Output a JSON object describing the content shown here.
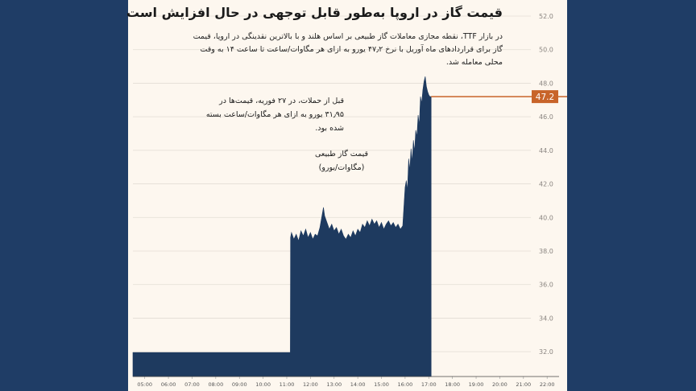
{
  "colors": {
    "background": "#1f3d66",
    "card": "#fdf7ef",
    "series_fill": "#1e3a5f",
    "accent": "#c8642a",
    "grid": "#e3ddd4"
  },
  "title": "قیمت گاز در اروپا به‌طور قابل توجهی در حال افزایش است",
  "subtitle": "در بازار TTF، نقطه مجازی معاملات گاز طبیعی بر اساس هلند و با بالاترین نقدینگی در اروپا، قیمت گاز برای قراردادهای ماه آوریل با نرخ ۴۷٫۲ یورو به ازای هر مگاوات/ساعت تا ساعت ۱۴ به وقت محلی معامله شد.",
  "annotations": {
    "note": "قبل از حملات، در ۲۷ فوریه، قیمت‌ها در ۳۱٫۹۵ یورو به ازای هر مگاوات/ساعت بسته شده بود.",
    "series_label_line1": "قیمت گاز طبیعی",
    "series_label_line2": "(مگاوات/یورو)"
  },
  "chart_data": {
    "type": "area",
    "ylim": [
      31,
      52
    ],
    "yticks": [
      "32.0",
      "34.0",
      "36.0",
      "38.0",
      "40.0",
      "42.0",
      "44.0",
      "46.0",
      "48.0",
      "50.0",
      "52.0"
    ],
    "xticks": [
      "05:00",
      "06:00",
      "07:00",
      "08:00",
      "09:00",
      "10:00",
      "11:00",
      "12:00",
      "13:00",
      "14:00",
      "15:00",
      "16:00",
      "17:00",
      "18:00",
      "19:00",
      "20:00",
      "21:00",
      "22:00"
    ],
    "xlim": [
      4.5,
      22.3
    ],
    "last_value": 47.2,
    "last_label": "47.2",
    "grid": true,
    "series": [
      {
        "x": [
          4.5,
          11.15,
          11.16,
          11.2,
          11.3,
          11.4,
          11.5,
          11.6,
          11.7,
          11.8,
          11.9,
          12.0,
          12.1,
          12.2,
          12.3,
          12.4,
          12.5,
          12.55,
          12.6,
          12.7,
          12.8,
          12.9,
          13.0,
          13.1,
          13.2,
          13.3,
          13.4,
          13.5,
          13.6,
          13.7,
          13.8,
          13.9,
          14.0,
          14.1,
          14.2,
          14.3,
          14.4,
          14.5,
          14.6,
          14.7,
          14.8,
          14.9,
          15.0,
          15.1,
          15.2,
          15.3,
          15.4,
          15.5,
          15.6,
          15.7,
          15.8,
          15.9,
          16.0,
          16.05,
          16.1,
          16.15,
          16.2,
          16.25,
          16.3,
          16.35,
          16.4,
          16.45,
          16.5,
          16.55,
          16.6,
          16.65,
          16.7,
          16.75,
          16.8,
          16.85,
          16.9,
          16.95,
          17.0,
          17.05,
          17.1
        ],
        "values": [
          31.95,
          31.95,
          38.8,
          39.1,
          38.7,
          39.0,
          38.6,
          39.2,
          38.9,
          39.3,
          38.8,
          39.1,
          38.7,
          39.0,
          38.9,
          39.4,
          40.2,
          40.6,
          40.1,
          39.7,
          39.3,
          39.6,
          39.2,
          39.4,
          39.0,
          39.3,
          38.9,
          38.7,
          39.0,
          38.8,
          39.2,
          38.9,
          39.3,
          39.1,
          39.6,
          39.4,
          39.8,
          39.5,
          39.9,
          39.6,
          39.8,
          39.4,
          39.7,
          39.3,
          39.6,
          39.8,
          39.5,
          39.7,
          39.4,
          39.6,
          39.3,
          39.5,
          41.8,
          42.2,
          41.6,
          43.5,
          42.8,
          44.1,
          43.3,
          44.6,
          43.9,
          45.2,
          44.8,
          46.1,
          45.5,
          47.2,
          46.8,
          47.6,
          48.1,
          48.4,
          47.8,
          47.5,
          47.3,
          47.2,
          47.2
        ]
      }
    ]
  }
}
